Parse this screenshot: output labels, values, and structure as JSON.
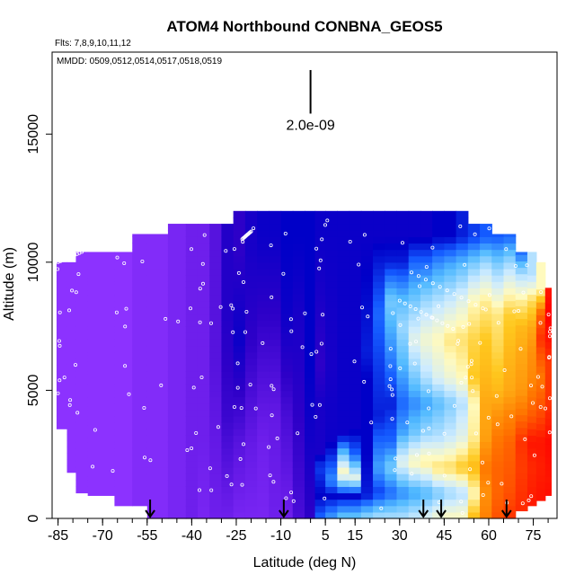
{
  "chart_data": {
    "type": "heatmap",
    "title": "ATOM4 Northbound CONBNA_GEOS5",
    "flights_label": "Flts: 7,8,9,10,11,12",
    "dates_label": "MMDD: 0509,0512,0514,0517,0518,0519",
    "xlabel": "Latitude (deg N)",
    "ylabel": "Altitude (m)",
    "xlim": [
      -87,
      83
    ],
    "ylim": [
      0,
      18200
    ],
    "x_ticks": [
      -85,
      -70,
      -55,
      -40,
      -25,
      -10,
      5,
      15,
      30,
      45,
      60,
      75
    ],
    "y_ticks": [
      0,
      5000,
      10000,
      15000
    ],
    "scale_bar_label": "2.0e-09",
    "scale_bar_lat": 0,
    "scale_bar_alt_range": [
      15800,
      17500
    ],
    "arrow_lats": [
      -54,
      -9,
      38,
      44,
      66
    ],
    "curtain_columns": [
      {
        "lat0": -85.5,
        "lat1": -82,
        "top": 10000,
        "bottom": 3500,
        "c": [
          [
            0,
            0.74
          ]
        ]
      },
      {
        "lat0": -82,
        "lat1": -79,
        "top": 10000,
        "bottom": 1800,
        "c": [
          [
            0,
            0.74
          ]
        ]
      },
      {
        "lat0": -79,
        "lat1": -75,
        "top": 10400,
        "bottom": 1000,
        "c": [
          [
            0,
            0.74
          ]
        ]
      },
      {
        "lat0": -75,
        "lat1": -66,
        "top": 10400,
        "bottom": 900,
        "c": [
          [
            0,
            0.74
          ]
        ]
      },
      {
        "lat0": -66,
        "lat1": -60,
        "top": 10400,
        "bottom": 500,
        "c": [
          [
            0,
            0.74
          ]
        ]
      },
      {
        "lat0": -60,
        "lat1": -55,
        "top": 11100,
        "bottom": 500,
        "c": [
          [
            0,
            0.73
          ]
        ]
      },
      {
        "lat0": -55,
        "lat1": -48,
        "top": 11100,
        "bottom": 0,
        "c": [
          [
            0,
            0.73
          ]
        ]
      },
      {
        "lat0": -48,
        "lat1": -42,
        "top": 11500,
        "bottom": 0,
        "c": [
          [
            0,
            0.72
          ]
        ]
      },
      {
        "lat0": -42,
        "lat1": -38,
        "top": 11500,
        "bottom": 0,
        "c": [
          [
            0,
            0.71
          ]
        ]
      },
      {
        "lat0": -38,
        "lat1": -34,
        "top": 11500,
        "bottom": 0,
        "c": [
          [
            0,
            0.72
          ],
          [
            3000,
            0.71
          ]
        ]
      },
      {
        "lat0": -34,
        "lat1": -30,
        "top": 11500,
        "bottom": 0,
        "c": [
          [
            0,
            0.71
          ],
          [
            6000,
            0.69
          ]
        ]
      },
      {
        "lat0": -30,
        "lat1": -26,
        "top": 11500,
        "bottom": 0,
        "c": [
          [
            0,
            0.71
          ],
          [
            4000,
            0.67
          ],
          [
            8000,
            0.65
          ]
        ]
      },
      {
        "lat0": -26,
        "lat1": -22,
        "top": 12000,
        "bottom": 0,
        "c": [
          [
            0,
            0.72
          ],
          [
            3000,
            0.69
          ],
          [
            7000,
            0.63
          ],
          [
            10500,
            0.66
          ]
        ]
      },
      {
        "lat0": -22,
        "lat1": -18,
        "top": 12000,
        "bottom": 0,
        "c": [
          [
            0,
            0.72
          ],
          [
            3000,
            0.7
          ],
          [
            7000,
            0.66
          ],
          [
            10500,
            0.64
          ]
        ]
      },
      {
        "lat0": -18,
        "lat1": -14,
        "top": 12000,
        "bottom": 0,
        "c": [
          [
            0,
            0.72
          ],
          [
            3000,
            0.71
          ],
          [
            8000,
            0.66
          ],
          [
            11000,
            0.63
          ]
        ]
      },
      {
        "lat0": -14,
        "lat1": -10,
        "top": 12000,
        "bottom": 0,
        "c": [
          [
            0,
            0.71
          ],
          [
            4000,
            0.7
          ],
          [
            8000,
            0.66
          ],
          [
            11000,
            0.63
          ]
        ]
      },
      {
        "lat0": -10,
        "lat1": -6,
        "top": 12000,
        "bottom": 0,
        "c": [
          [
            0,
            0.71
          ],
          [
            4000,
            0.68
          ],
          [
            8000,
            0.63
          ],
          [
            11000,
            0.62
          ]
        ]
      },
      {
        "lat0": -6,
        "lat1": -2,
        "top": 12000,
        "bottom": 0,
        "c": [
          [
            0,
            0.68
          ],
          [
            4000,
            0.66
          ],
          [
            8000,
            0.64
          ],
          [
            11000,
            0.62
          ]
        ]
      },
      {
        "lat0": -2,
        "lat1": 1.5,
        "top": 12000,
        "bottom": 0,
        "c": [
          [
            0,
            0.66
          ],
          [
            2500,
            0.64
          ],
          [
            6000,
            0.62
          ],
          [
            11000,
            0.62
          ]
        ]
      },
      {
        "lat0": 1.5,
        "lat1": 5,
        "top": 12000,
        "bottom": 0,
        "c": [
          [
            0,
            0.55
          ],
          [
            900,
            0.62
          ],
          [
            2000,
            0.58
          ],
          [
            2600,
            0.64
          ],
          [
            4500,
            0.64
          ],
          [
            6000,
            0.66
          ],
          [
            9000,
            0.64
          ],
          [
            11000,
            0.63
          ]
        ]
      },
      {
        "lat0": 5,
        "lat1": 9,
        "top": 12000,
        "bottom": 0,
        "c": [
          [
            0,
            0.5
          ],
          [
            900,
            0.62
          ],
          [
            1500,
            0.52
          ],
          [
            3000,
            0.63
          ],
          [
            6000,
            0.64
          ],
          [
            11000,
            0.63
          ]
        ]
      },
      {
        "lat0": 9,
        "lat1": 13,
        "top": 12000,
        "bottom": 0,
        "c": [
          [
            0,
            0.45
          ],
          [
            900,
            0.62
          ],
          [
            1800,
            0.3
          ],
          [
            2700,
            0.5
          ],
          [
            3300,
            0.63
          ],
          [
            11000,
            0.63
          ]
        ]
      },
      {
        "lat0": 13,
        "lat1": 17,
        "top": 12000,
        "bottom": 0,
        "c": [
          [
            0,
            0.45
          ],
          [
            900,
            0.62
          ],
          [
            1600,
            0.35
          ],
          [
            2500,
            0.55
          ],
          [
            3500,
            0.63
          ],
          [
            11000,
            0.63
          ]
        ]
      },
      {
        "lat0": 17,
        "lat1": 21,
        "top": 12000,
        "bottom": 0,
        "c": [
          [
            0,
            0.42
          ],
          [
            900,
            0.6
          ],
          [
            2500,
            0.62
          ],
          [
            5500,
            0.62
          ],
          [
            6500,
            0.6
          ],
          [
            11000,
            0.63
          ]
        ]
      },
      {
        "lat0": 21,
        "lat1": 25,
        "top": 12000,
        "bottom": 0,
        "c": [
          [
            0,
            0.4
          ],
          [
            1000,
            0.58
          ],
          [
            2000,
            0.5
          ],
          [
            4000,
            0.6
          ],
          [
            6000,
            0.58
          ],
          [
            8000,
            0.55
          ],
          [
            11000,
            0.63
          ]
        ]
      },
      {
        "lat0": 25,
        "lat1": 29,
        "top": 12000,
        "bottom": 0,
        "c": [
          [
            0,
            0.4
          ],
          [
            1000,
            0.55
          ],
          [
            2000,
            0.45
          ],
          [
            3000,
            0.55
          ],
          [
            4500,
            0.6
          ],
          [
            6500,
            0.52
          ],
          [
            8500,
            0.45
          ],
          [
            10000,
            0.6
          ],
          [
            11000,
            0.63
          ]
        ]
      },
      {
        "lat0": 29,
        "lat1": 33,
        "top": 12000,
        "bottom": 0,
        "c": [
          [
            0,
            0.4
          ],
          [
            1000,
            0.52
          ],
          [
            2200,
            0.35
          ],
          [
            3400,
            0.5
          ],
          [
            4500,
            0.55
          ],
          [
            6000,
            0.48
          ],
          [
            7500,
            0.42
          ],
          [
            8500,
            0.47
          ],
          [
            10000,
            0.6
          ],
          [
            11000,
            0.63
          ]
        ]
      },
      {
        "lat0": 33,
        "lat1": 37,
        "top": 12000,
        "bottom": 0,
        "c": [
          [
            0,
            0.38
          ],
          [
            1000,
            0.5
          ],
          [
            2200,
            0.3
          ],
          [
            3300,
            0.45
          ],
          [
            4500,
            0.52
          ],
          [
            5500,
            0.45
          ],
          [
            7000,
            0.35
          ],
          [
            8500,
            0.45
          ],
          [
            10000,
            0.55
          ],
          [
            11000,
            0.63
          ]
        ]
      },
      {
        "lat0": 37,
        "lat1": 41,
        "top": 12000,
        "bottom": 0,
        "c": [
          [
            0,
            0.35
          ],
          [
            1000,
            0.48
          ],
          [
            2200,
            0.28
          ],
          [
            3300,
            0.42
          ],
          [
            4500,
            0.5
          ],
          [
            5500,
            0.4
          ],
          [
            7000,
            0.32
          ],
          [
            8500,
            0.42
          ],
          [
            10000,
            0.55
          ],
          [
            11000,
            0.63
          ]
        ]
      },
      {
        "lat0": 41,
        "lat1": 45,
        "top": 12000,
        "bottom": 0,
        "c": [
          [
            0,
            0.32
          ],
          [
            1000,
            0.45
          ],
          [
            2000,
            0.26
          ],
          [
            3200,
            0.4
          ],
          [
            4500,
            0.47
          ],
          [
            5500,
            0.36
          ],
          [
            7000,
            0.3
          ],
          [
            8500,
            0.4
          ],
          [
            10000,
            0.52
          ],
          [
            11000,
            0.62
          ]
        ]
      },
      {
        "lat0": 45,
        "lat1": 49,
        "top": 12000,
        "bottom": 0,
        "c": [
          [
            0,
            0.3
          ],
          [
            1000,
            0.42
          ],
          [
            2000,
            0.25
          ],
          [
            3200,
            0.38
          ],
          [
            4500,
            0.44
          ],
          [
            5500,
            0.33
          ],
          [
            7000,
            0.27
          ],
          [
            8500,
            0.38
          ],
          [
            10000,
            0.5
          ],
          [
            11000,
            0.62
          ]
        ]
      },
      {
        "lat0": 49,
        "lat1": 53,
        "top": 12000,
        "bottom": 0,
        "c": [
          [
            0,
            0.3
          ],
          [
            1000,
            0.4
          ],
          [
            2000,
            0.22
          ],
          [
            3200,
            0.35
          ],
          [
            4500,
            0.4
          ],
          [
            5500,
            0.3
          ],
          [
            7000,
            0.26
          ],
          [
            8500,
            0.35
          ],
          [
            10000,
            0.48
          ],
          [
            11000,
            0.6
          ]
        ]
      },
      {
        "lat0": 53,
        "lat1": 57,
        "top": 11500,
        "bottom": 0,
        "c": [
          [
            0,
            0.2
          ],
          [
            1000,
            0.3
          ],
          [
            2000,
            0.2
          ],
          [
            3200,
            0.28
          ],
          [
            4500,
            0.3
          ],
          [
            5500,
            0.22
          ],
          [
            7000,
            0.24
          ],
          [
            8500,
            0.3
          ],
          [
            10000,
            0.45
          ],
          [
            11000,
            0.58
          ]
        ]
      },
      {
        "lat0": 57,
        "lat1": 61,
        "top": 11500,
        "bottom": 0,
        "c": [
          [
            0,
            0.13
          ],
          [
            1000,
            0.15
          ],
          [
            2000,
            0.12
          ],
          [
            3200,
            0.17
          ],
          [
            4500,
            0.18
          ],
          [
            5500,
            0.2
          ],
          [
            7000,
            0.22
          ],
          [
            8500,
            0.28
          ],
          [
            10000,
            0.42
          ],
          [
            11000,
            0.56
          ]
        ]
      },
      {
        "lat0": 61,
        "lat1": 65,
        "top": 11100,
        "bottom": 0,
        "c": [
          [
            0,
            0.08
          ],
          [
            1000,
            0.1
          ],
          [
            2000,
            0.1
          ],
          [
            3200,
            0.12
          ],
          [
            4200,
            0.16
          ],
          [
            5000,
            0.2
          ],
          [
            6500,
            0.24
          ],
          [
            8000,
            0.27
          ],
          [
            9000,
            0.36
          ],
          [
            10000,
            0.45
          ],
          [
            11000,
            0.56
          ]
        ]
      },
      {
        "lat0": 65,
        "lat1": 69,
        "top": 11100,
        "bottom": 0,
        "c": [
          [
            0,
            0.05
          ],
          [
            1000,
            0.08
          ],
          [
            2000,
            0.09
          ],
          [
            3000,
            0.1
          ],
          [
            4200,
            0.14
          ],
          [
            5000,
            0.18
          ],
          [
            6500,
            0.2
          ],
          [
            8000,
            0.23
          ],
          [
            9000,
            0.32
          ],
          [
            10000,
            0.42
          ],
          [
            11000,
            0.55
          ]
        ]
      },
      {
        "lat0": 69,
        "lat1": 73,
        "top": 10400,
        "bottom": 300,
        "c": [
          [
            0,
            0.04
          ],
          [
            1000,
            0.05
          ],
          [
            2000,
            0.06
          ],
          [
            3000,
            0.05
          ],
          [
            4200,
            0.12
          ],
          [
            5000,
            0.16
          ],
          [
            6500,
            0.18
          ],
          [
            7500,
            0.2
          ],
          [
            8500,
            0.28
          ],
          [
            9500,
            0.4
          ],
          [
            10400,
            0.55
          ]
        ]
      },
      {
        "lat0": 73,
        "lat1": 76,
        "top": 10400,
        "bottom": 500,
        "c": [
          [
            0,
            0.02
          ],
          [
            1000,
            0.03
          ],
          [
            2000,
            0.04
          ],
          [
            3000,
            0.02
          ],
          [
            4000,
            0.09
          ],
          [
            5500,
            0.14
          ],
          [
            6500,
            0.15
          ],
          [
            7500,
            0.18
          ],
          [
            8500,
            0.25
          ],
          [
            9500,
            0.4
          ]
        ]
      },
      {
        "lat0": 76,
        "lat1": 79,
        "top": 10000,
        "bottom": 700,
        "c": [
          [
            0,
            0.02
          ],
          [
            1000,
            0.02
          ],
          [
            2000,
            0.03
          ],
          [
            3000,
            0.02
          ],
          [
            4000,
            0.07
          ],
          [
            5500,
            0.12
          ],
          [
            6500,
            0.08
          ],
          [
            7000,
            0.05
          ],
          [
            8000,
            0.1
          ],
          [
            9000,
            0.3
          ]
        ]
      },
      {
        "lat0": 79,
        "lat1": 81,
        "top": 9000,
        "bottom": 900,
        "c": [
          [
            0,
            0.0
          ],
          [
            1500,
            0.02
          ],
          [
            3000,
            0.01
          ],
          [
            4500,
            0.05
          ],
          [
            6000,
            0.06
          ],
          [
            7000,
            0.02
          ],
          [
            8000,
            0.0
          ],
          [
            8800,
            0.02
          ]
        ]
      }
    ]
  }
}
